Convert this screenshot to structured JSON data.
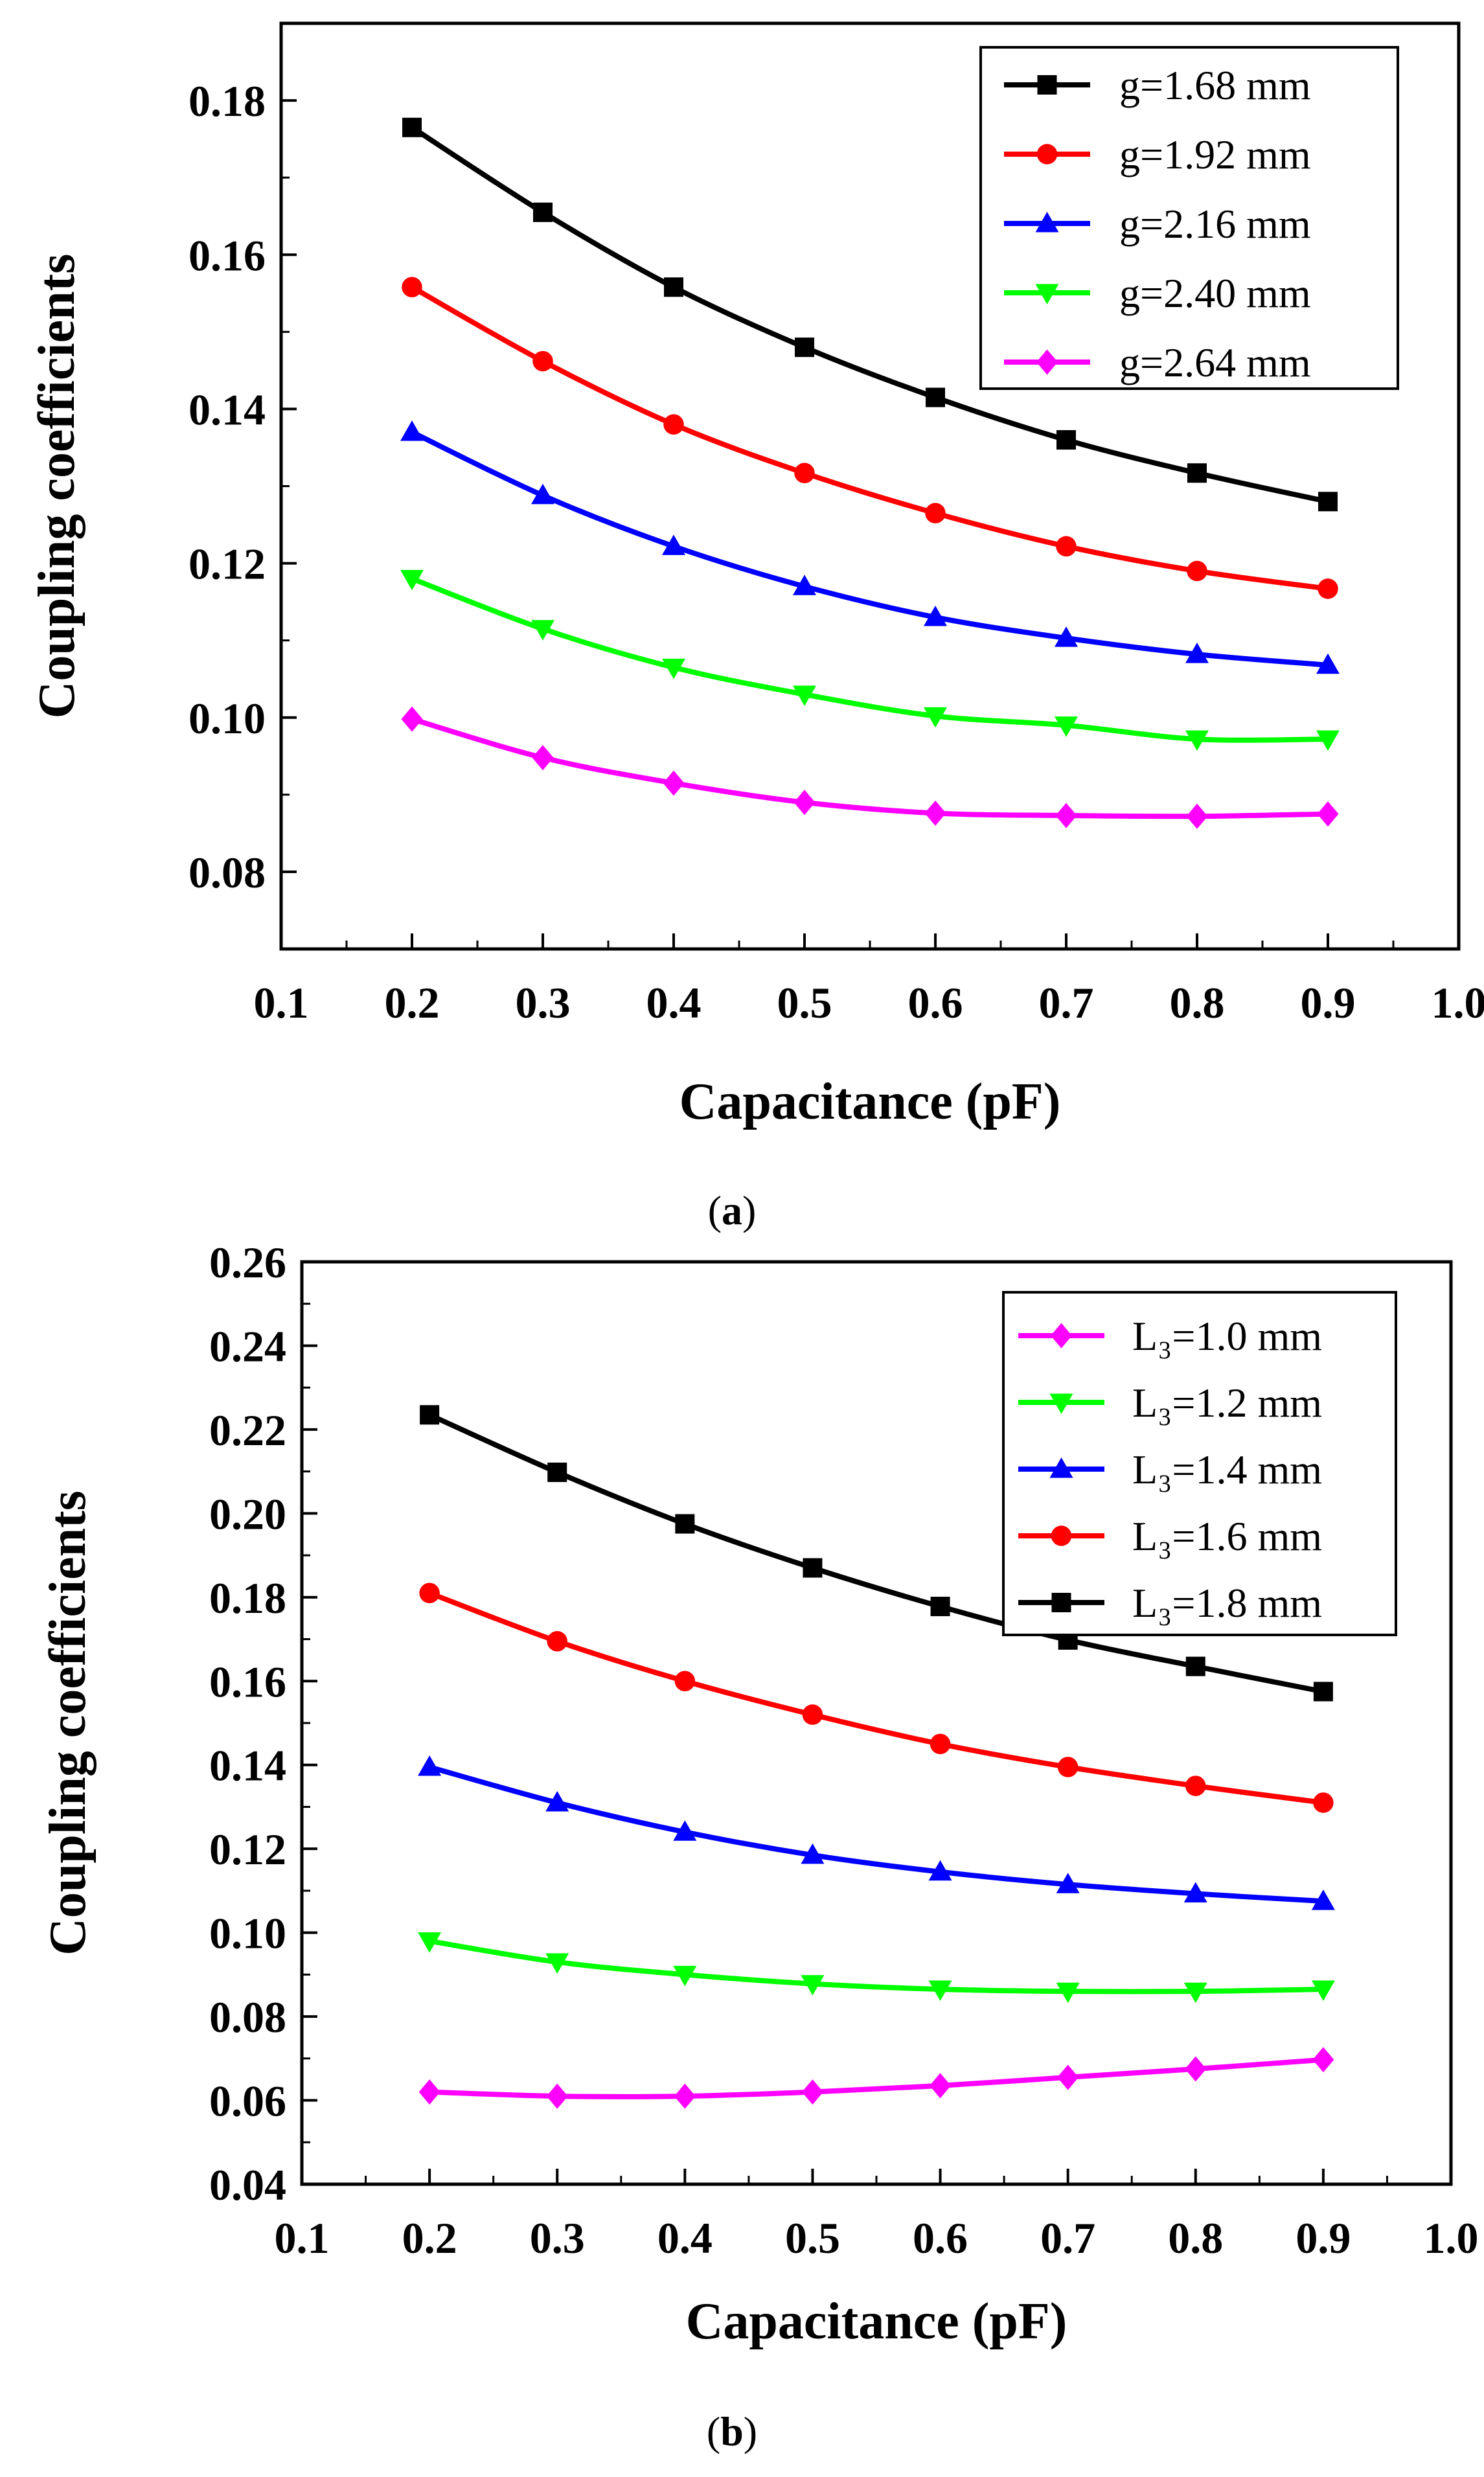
{
  "chart_data": [
    {
      "type": "line",
      "panel_label": "a",
      "title": "",
      "xlabel": "Capacitance (pF)",
      "ylabel": "Coupling coefficients",
      "xlim": [
        0.1,
        1.0
      ],
      "ylim": [
        0.07,
        0.19
      ],
      "xticks": [
        "0.1",
        "0.2",
        "0.3",
        "0.4",
        "0.5",
        "0.6",
        "0.7",
        "0.8",
        "0.9",
        "1.0"
      ],
      "yticks": [
        "0.08",
        "0.10",
        "0.12",
        "0.14",
        "0.16",
        "0.18"
      ],
      "x": [
        0.2,
        0.3,
        0.4,
        0.5,
        0.6,
        0.7,
        0.8,
        0.9
      ],
      "legend_position": "top-right",
      "series": [
        {
          "name": "g=1.68 mm",
          "color": "#000000",
          "marker": "square",
          "values": [
            0.1765,
            0.1655,
            0.1558,
            0.148,
            0.1415,
            0.136,
            0.1317,
            0.128
          ]
        },
        {
          "name": "g=1.92 mm",
          "color": "#ff0000",
          "marker": "circle",
          "values": [
            0.1558,
            0.1462,
            0.138,
            0.1317,
            0.1265,
            0.1222,
            0.119,
            0.1167
          ]
        },
        {
          "name": "g=2.16 mm",
          "color": "#0000ff",
          "marker": "triangle-up",
          "values": [
            0.137,
            0.1288,
            0.1222,
            0.117,
            0.113,
            0.1103,
            0.1082,
            0.1068
          ]
        },
        {
          "name": "g=2.40 mm",
          "color": "#00ff00",
          "marker": "triangle-down",
          "values": [
            0.118,
            0.1115,
            0.1065,
            0.103,
            0.1002,
            0.099,
            0.0972,
            0.0972
          ]
        },
        {
          "name": "g=2.64 mm",
          "color": "#ff00ff",
          "marker": "diamond",
          "values": [
            0.0998,
            0.0948,
            0.0915,
            0.089,
            0.0876,
            0.0873,
            0.0872,
            0.0875
          ]
        }
      ]
    },
    {
      "type": "line",
      "panel_label": "b",
      "title": "",
      "xlabel": "Capacitance (pF)",
      "ylabel": "Coupling coefficients",
      "xlim": [
        0.1,
        1.0
      ],
      "ylim": [
        0.04,
        0.26
      ],
      "xticks": [
        "0.1",
        "0.2",
        "0.3",
        "0.4",
        "0.5",
        "0.6",
        "0.7",
        "0.8",
        "0.9",
        "1.0"
      ],
      "yticks": [
        "0.04",
        "0.06",
        "0.08",
        "0.10",
        "0.12",
        "0.14",
        "0.16",
        "0.18",
        "0.20",
        "0.22",
        "0.24",
        "0.26"
      ],
      "x": [
        0.2,
        0.3,
        0.4,
        0.5,
        0.6,
        0.7,
        0.8,
        0.9
      ],
      "legend_position": "top-right",
      "series": [
        {
          "name": "L₃=1.0 mm",
          "color": "#ff00ff",
          "marker": "diamond",
          "values": [
            0.062,
            0.061,
            0.061,
            0.062,
            0.0635,
            0.0655,
            0.0675,
            0.0697
          ]
        },
        {
          "name": "L₃=1.2 mm",
          "color": "#00ff00",
          "marker": "triangle-down",
          "values": [
            0.098,
            0.093,
            0.09,
            0.0878,
            0.0865,
            0.086,
            0.086,
            0.0865
          ]
        },
        {
          "name": "L₃=1.4 mm",
          "color": "#0000ff",
          "marker": "triangle-up",
          "values": [
            0.1395,
            0.131,
            0.124,
            0.1185,
            0.1145,
            0.1115,
            0.1093,
            0.1075
          ]
        },
        {
          "name": "L₃=1.6 mm",
          "color": "#ff0000",
          "marker": "circle",
          "values": [
            0.181,
            0.1695,
            0.16,
            0.152,
            0.145,
            0.1395,
            0.135,
            0.131
          ]
        },
        {
          "name": "L₃=1.8 mm",
          "color": "#000000",
          "marker": "square",
          "values": [
            0.2235,
            0.2098,
            0.1975,
            0.187,
            0.1778,
            0.1698,
            0.1635,
            0.1575
          ]
        }
      ]
    }
  ],
  "captions": [
    {
      "open": "(",
      "label": "a",
      "close": ")"
    },
    {
      "open": "(",
      "label": "b",
      "close": ")"
    }
  ]
}
